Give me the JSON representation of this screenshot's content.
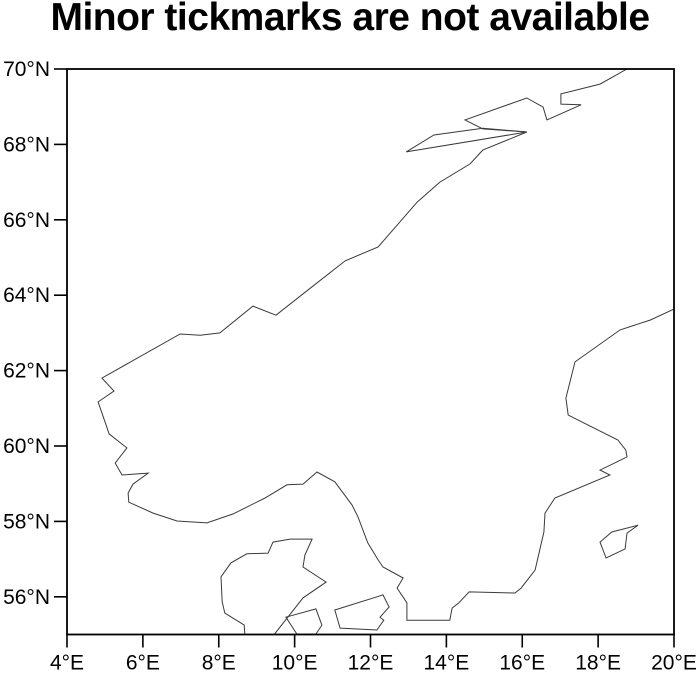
{
  "title": "Minor tickmarks are not available",
  "chart_data": {
    "type": "map",
    "title": "Minor tickmarks are not available",
    "projection": "cylindrical-equidistant",
    "region": "Scandinavia (Norway, Sweden, Denmark)",
    "lon_range": [
      4,
      20
    ],
    "lat_range": [
      55,
      70
    ],
    "grid": "off",
    "minor_ticks": "none",
    "background": "#ffffff",
    "frame_color": "#000000",
    "line_color": "#3a3a3a",
    "x_ticks": [
      {
        "value": 4,
        "label": "4°E"
      },
      {
        "value": 6,
        "label": "6°E"
      },
      {
        "value": 8,
        "label": "8°E"
      },
      {
        "value": 10,
        "label": "10°E"
      },
      {
        "value": 12,
        "label": "12°E"
      },
      {
        "value": 14,
        "label": "14°E"
      },
      {
        "value": 16,
        "label": "16°E"
      },
      {
        "value": 18,
        "label": "18°E"
      },
      {
        "value": 20,
        "label": "20°E"
      }
    ],
    "y_ticks": [
      {
        "value": 56,
        "label": "56°N"
      },
      {
        "value": 58,
        "label": "58°N"
      },
      {
        "value": 60,
        "label": "60°N"
      },
      {
        "value": 62,
        "label": "62°N"
      },
      {
        "value": 64,
        "label": "64°N"
      },
      {
        "value": 66,
        "label": "66°N"
      },
      {
        "value": 68,
        "label": "68°N"
      },
      {
        "value": 70,
        "label": "70°N"
      }
    ],
    "coastlines": [
      {
        "name": "scandinavia-mainland",
        "closed": false,
        "points": [
          [
            18.76,
            70.0
          ],
          [
            18.05,
            69.6
          ],
          [
            17.02,
            69.34
          ],
          [
            17.02,
            69.07
          ],
          [
            17.55,
            69.05
          ],
          [
            16.65,
            68.65
          ],
          [
            16.55,
            68.99
          ],
          [
            16.12,
            69.23
          ],
          [
            14.49,
            68.65
          ],
          [
            14.96,
            68.41
          ],
          [
            16.12,
            68.33
          ],
          [
            14.96,
            67.85
          ],
          [
            14.62,
            67.48
          ],
          [
            13.83,
            67.0
          ],
          [
            13.23,
            66.47
          ],
          [
            12.2,
            65.28
          ],
          [
            11.33,
            64.91
          ],
          [
            10.48,
            64.24
          ],
          [
            9.51,
            63.47
          ],
          [
            8.9,
            63.71
          ],
          [
            8.03,
            63.0
          ],
          [
            7.51,
            62.94
          ],
          [
            6.98,
            62.97
          ],
          [
            4.92,
            61.8
          ],
          [
            5.24,
            61.46
          ],
          [
            4.82,
            61.17
          ],
          [
            5.05,
            60.5
          ],
          [
            5.11,
            60.32
          ],
          [
            5.58,
            59.95
          ],
          [
            5.27,
            59.55
          ],
          [
            5.45,
            59.23
          ],
          [
            6.14,
            59.28
          ],
          [
            5.74,
            58.99
          ],
          [
            5.61,
            58.75
          ],
          [
            5.63,
            58.51
          ],
          [
            6.27,
            58.22
          ],
          [
            6.9,
            58.01
          ],
          [
            7.69,
            57.96
          ],
          [
            8.38,
            58.2
          ],
          [
            9.22,
            58.62
          ],
          [
            9.8,
            58.97
          ],
          [
            10.22,
            58.99
          ],
          [
            10.59,
            59.31
          ],
          [
            11.06,
            59.05
          ],
          [
            11.51,
            58.44
          ],
          [
            11.67,
            58.12
          ],
          [
            11.93,
            57.43
          ],
          [
            12.2,
            56.98
          ],
          [
            12.33,
            56.79
          ],
          [
            12.86,
            56.5
          ],
          [
            12.7,
            56.23
          ],
          [
            12.96,
            55.84
          ],
          [
            12.96,
            55.38
          ],
          [
            14.09,
            55.38
          ],
          [
            14.15,
            55.7
          ],
          [
            14.33,
            55.84
          ],
          [
            14.6,
            56.13
          ],
          [
            15.81,
            56.1
          ],
          [
            15.97,
            56.23
          ],
          [
            16.34,
            56.71
          ],
          [
            16.57,
            57.72
          ],
          [
            16.6,
            58.22
          ],
          [
            16.86,
            58.62
          ],
          [
            18.31,
            59.23
          ],
          [
            18.05,
            59.36
          ],
          [
            18.5,
            59.58
          ],
          [
            18.76,
            59.71
          ],
          [
            18.73,
            59.89
          ],
          [
            18.52,
            60.16
          ],
          [
            17.21,
            60.82
          ],
          [
            17.15,
            61.27
          ],
          [
            17.39,
            62.23
          ],
          [
            18.58,
            63.08
          ],
          [
            19.37,
            63.34
          ],
          [
            20.0,
            63.63
          ]
        ]
      },
      {
        "name": "lofoten-islands",
        "closed": true,
        "points": [
          [
            12.94,
            67.8
          ],
          [
            13.67,
            68.25
          ],
          [
            14.96,
            68.43
          ],
          [
            16.12,
            68.33
          ]
        ]
      },
      {
        "name": "jutland-denmark",
        "closed": false,
        "points": [
          [
            8.69,
            54.97
          ],
          [
            8.67,
            55.25
          ],
          [
            8.16,
            55.57
          ],
          [
            8.09,
            55.86
          ],
          [
            8.06,
            56.53
          ],
          [
            8.32,
            56.9
          ],
          [
            8.74,
            57.14
          ],
          [
            9.3,
            57.16
          ],
          [
            9.43,
            57.45
          ],
          [
            9.88,
            57.53
          ],
          [
            10.46,
            57.53
          ],
          [
            10.27,
            57.11
          ],
          [
            10.22,
            56.79
          ],
          [
            10.83,
            56.39
          ],
          [
            10.22,
            55.97
          ],
          [
            9.43,
            54.96
          ]
        ]
      },
      {
        "name": "fyn-denmark",
        "closed": true,
        "points": [
          [
            9.77,
            55.46
          ],
          [
            10.56,
            55.68
          ],
          [
            10.72,
            55.25
          ],
          [
            10.56,
            55.01
          ],
          [
            10.06,
            55.01
          ]
        ]
      },
      {
        "name": "zealand-denmark",
        "closed": true,
        "points": [
          [
            11.06,
            55.65
          ],
          [
            12.33,
            56.05
          ],
          [
            12.49,
            55.73
          ],
          [
            12.25,
            55.46
          ],
          [
            12.35,
            55.38
          ],
          [
            12.17,
            55.12
          ],
          [
            11.2,
            55.17
          ]
        ]
      },
      {
        "name": "gotland-sweden",
        "closed": true,
        "points": [
          [
            19.05,
            57.9
          ],
          [
            18.36,
            57.72
          ],
          [
            18.05,
            57.45
          ],
          [
            18.21,
            57.03
          ],
          [
            18.71,
            57.27
          ],
          [
            18.76,
            57.69
          ]
        ]
      }
    ]
  }
}
